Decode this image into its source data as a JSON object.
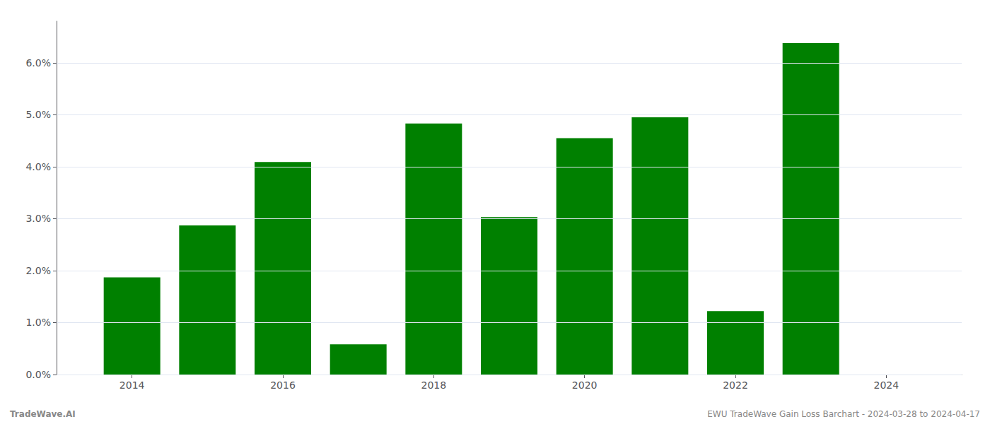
{
  "chart_data": {
    "type": "bar",
    "x": [
      2014,
      2015,
      2016,
      2017,
      2018,
      2019,
      2020,
      2021,
      2022,
      2023
    ],
    "values": [
      0.0187,
      0.0287,
      0.0409,
      0.0058,
      0.0483,
      0.0303,
      0.0455,
      0.0495,
      0.0122,
      0.0638
    ],
    "color": "#008000",
    "xlim": [
      2013.0,
      2025.0
    ],
    "xticks": [
      2014,
      2016,
      2018,
      2020,
      2022,
      2024
    ],
    "ylim": [
      0,
      0.068
    ],
    "yticks": [
      {
        "value": 0.0,
        "label": "0.0%"
      },
      {
        "value": 0.01,
        "label": "1.0%"
      },
      {
        "value": 0.02,
        "label": "2.0%"
      },
      {
        "value": 0.03,
        "label": "3.0%"
      },
      {
        "value": 0.04,
        "label": "4.0%"
      },
      {
        "value": 0.05,
        "label": "5.0%"
      },
      {
        "value": 0.06,
        "label": "6.0%"
      }
    ],
    "grid": true,
    "annotations": [
      "TradeWave.AI",
      "EWU TradeWave Gain Loss Barchart - 2024-03-28 to 2024-04-17"
    ]
  }
}
